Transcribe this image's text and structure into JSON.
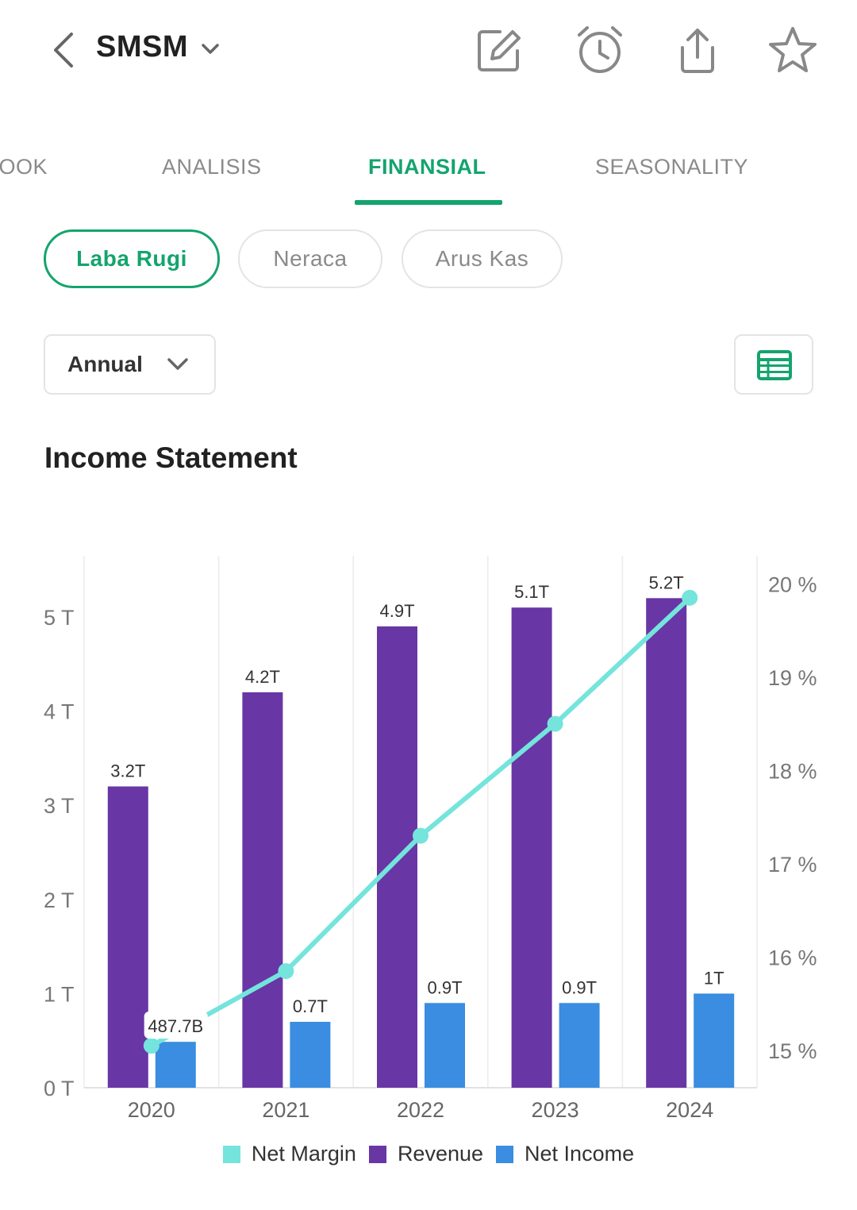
{
  "header": {
    "ticker": "SMSM",
    "icons": [
      "back-chevron-icon",
      "dropdown-chevron-icon",
      "edit-icon",
      "alarm-icon",
      "share-icon",
      "star-icon"
    ]
  },
  "tabs": [
    {
      "label": "BOOK",
      "active": false
    },
    {
      "label": "ANALISIS",
      "active": false
    },
    {
      "label": "FINANSIAL",
      "active": true
    },
    {
      "label": "SEASONALITY",
      "active": false
    }
  ],
  "statement_tabs": [
    {
      "label": "Laba Rugi",
      "active": true
    },
    {
      "label": "Neraca",
      "active": false
    },
    {
      "label": "Arus Kas",
      "active": false
    }
  ],
  "period_select": {
    "value": "Annual"
  },
  "section": {
    "title": "Income Statement"
  },
  "colors": {
    "accent": "#14a46d",
    "revenue": "#6836a5",
    "net_income": "#3a8de0",
    "net_margin": "#74e4dc"
  },
  "chart_data": {
    "type": "bar",
    "categories": [
      "2020",
      "2021",
      "2022",
      "2023",
      "2024"
    ],
    "series": [
      {
        "name": "Revenue",
        "type": "bar",
        "axis": "left",
        "values": [
          3.2,
          4.2,
          4.9,
          5.1,
          5.2
        ],
        "labels": [
          "3.2T",
          "4.2T",
          "4.9T",
          "5.1T",
          "5.2T"
        ]
      },
      {
        "name": "Net Income",
        "type": "bar",
        "axis": "left",
        "values": [
          0.4877,
          0.7,
          0.9,
          0.9,
          1.0
        ],
        "labels": [
          "487.7B",
          "0.7T",
          "0.9T",
          "0.9T",
          "1T"
        ]
      },
      {
        "name": "Net Margin",
        "type": "line",
        "axis": "right",
        "values": [
          15.05,
          15.85,
          17.3,
          18.5,
          19.85
        ]
      }
    ],
    "y_left": {
      "ticks": [
        "0 T",
        "1 T",
        "2 T",
        "3 T",
        "4 T",
        "5 T"
      ],
      "range": [
        0,
        5.65
      ]
    },
    "y_right": {
      "ticks": [
        "15 %",
        "16 %",
        "17 %",
        "18 %",
        "19 %",
        "20 %"
      ],
      "range": [
        14.6,
        20.3
      ]
    },
    "legend": [
      {
        "name": "Net Margin",
        "color": "#74e4dc"
      },
      {
        "name": "Revenue",
        "color": "#6836a5"
      },
      {
        "name": "Net Income",
        "color": "#3a8de0"
      }
    ],
    "legend_position": "bottom",
    "grid": "vertical"
  }
}
